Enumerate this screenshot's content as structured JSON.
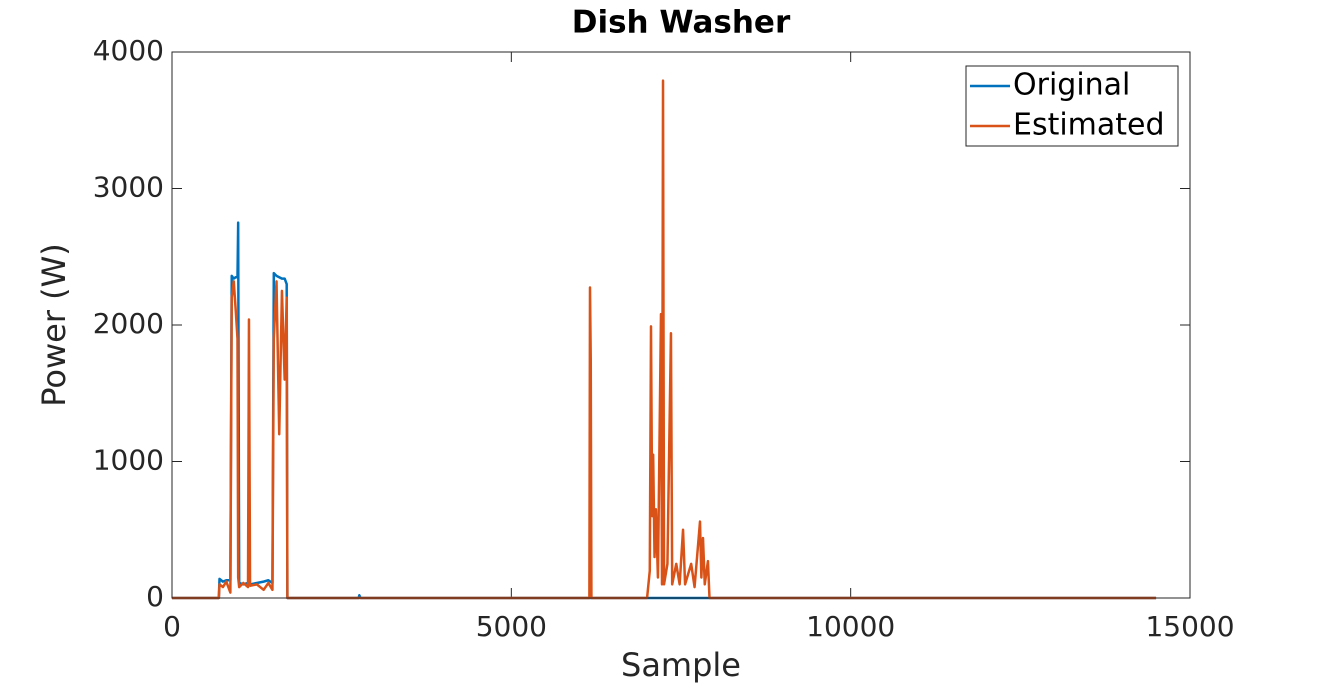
{
  "chart_data": {
    "type": "line",
    "title": "Dish Washer",
    "x_label": "Sample",
    "y_label": "Power (W)",
    "x": [
      0,
      690,
      700,
      750,
      800,
      860,
      880,
      910,
      940,
      965,
      975,
      990,
      1050,
      1120,
      1134,
      1150,
      1250,
      1350,
      1420,
      1480,
      1500,
      1540,
      1580,
      1620,
      1660,
      1690,
      1700,
      2750,
      2760,
      2780,
      6150,
      6159,
      6170,
      6180,
      7000,
      7040,
      7058,
      7075,
      7090,
      7110,
      7130,
      7160,
      7205,
      7220,
      7235,
      7250,
      7300,
      7352,
      7370,
      7430,
      7480,
      7530,
      7560,
      7650,
      7700,
      7780,
      7800,
      7824,
      7850,
      7897,
      7920,
      14500
    ],
    "series": [
      {
        "name": "Original",
        "color": "#0072bd",
        "values": [
          0,
          0,
          140,
          120,
          130,
          130,
          2360,
          2340,
          2350,
          2350,
          2750,
          110,
          100,
          110,
          100,
          100,
          110,
          120,
          130,
          110,
          2380,
          2360,
          2350,
          2340,
          2340,
          2300,
          0,
          0,
          20,
          0,
          0,
          0,
          0,
          0,
          0,
          0,
          0,
          0,
          0,
          0,
          0,
          0,
          0,
          0,
          0,
          0,
          0,
          0,
          0,
          0,
          0,
          0,
          0,
          0,
          0,
          0,
          0,
          0,
          0,
          0,
          0,
          0
        ]
      },
      {
        "name": "Estimated",
        "color": "#d95319",
        "values": [
          0,
          0,
          100,
          80,
          120,
          40,
          2200,
          2320,
          2100,
          1900,
          150,
          80,
          110,
          80,
          2040,
          90,
          100,
          60,
          110,
          60,
          1900,
          2320,
          1200,
          2250,
          1600,
          2200,
          0,
          0,
          0,
          0,
          0,
          2275,
          1750,
          0,
          0,
          200,
          1990,
          600,
          1050,
          300,
          650,
          150,
          2080,
          100,
          3790,
          100,
          250,
          1940,
          100,
          250,
          100,
          500,
          100,
          250,
          80,
          560,
          150,
          440,
          100,
          270,
          0,
          0
        ]
      }
    ],
    "xlim": [
      0,
      15000
    ],
    "xticks": [
      0,
      5000,
      10000,
      15000
    ],
    "ylim": [
      0,
      4000
    ],
    "yticks": [
      0,
      1000,
      2000,
      3000,
      4000
    ],
    "legend": "northeast"
  }
}
